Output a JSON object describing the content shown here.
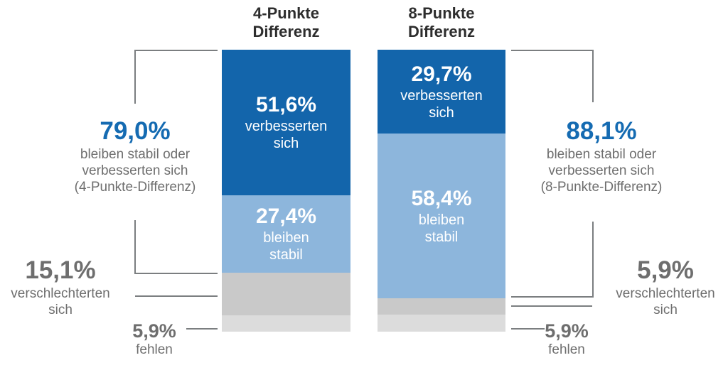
{
  "colors": {
    "improved": "#1365ab",
    "stable": "#8db6dc",
    "worsened": "#c9c9c9",
    "missing": "#dcdcdc",
    "accent_blue": "#156bb2",
    "text_dark": "#2d2d2d",
    "text_gray": "#6e6e6e",
    "line_gray": "#7b7e80",
    "bar_label": "#ffffff"
  },
  "chart_data": {
    "type": "bar",
    "subtype": "100%-stacked-vertical-columns",
    "unit": "%",
    "legend": "none",
    "columns": [
      {
        "title": "4-Punkte Differenz",
        "title_lines": [
          "4-Punkte",
          "Differenz"
        ],
        "segments": [
          {
            "category": "verbesserten sich",
            "value": 51.6,
            "value_label": "51,6%",
            "label_lines": [
              "verbesserten",
              "sich"
            ],
            "color_key": "improved"
          },
          {
            "category": "bleiben stabil",
            "value": 27.4,
            "value_label": "27,4%",
            "label_lines": [
              "bleiben",
              "stabil"
            ],
            "color_key": "stable"
          },
          {
            "category": "verschlechterten sich",
            "value": 15.1,
            "value_label": "15,1%",
            "label_lines": [],
            "color_key": "worsened"
          },
          {
            "category": "fehlen",
            "value": 5.9,
            "value_label": "5,9%",
            "label_lines": [],
            "color_key": "missing"
          }
        ]
      },
      {
        "title": "8-Punkte Differenz",
        "title_lines": [
          "8-Punkte",
          "Differenz"
        ],
        "segments": [
          {
            "category": "verbesserten sich",
            "value": 29.7,
            "value_label": "29,7%",
            "label_lines": [
              "verbesserten",
              "sich"
            ],
            "color_key": "improved"
          },
          {
            "category": "bleiben stabil",
            "value": 58.4,
            "value_label": "58,4%",
            "label_lines": [
              "bleiben",
              "stabil"
            ],
            "color_key": "stable"
          },
          {
            "category": "verschlechterten sich",
            "value": 5.9,
            "value_label": "5,9%",
            "label_lines": [],
            "color_key": "worsened"
          },
          {
            "category": "fehlen",
            "value": 5.9,
            "value_label": "5,9%",
            "label_lines": [],
            "color_key": "missing"
          }
        ]
      }
    ],
    "annotations": {
      "left_total": {
        "value": 79.0,
        "value_label": "79,0%",
        "lines": [
          "bleiben stabil oder",
          "verbesserten sich",
          "(4-Punkte-Differenz)"
        ]
      },
      "left_worsened": {
        "value": 15.1,
        "value_label": "15,1%",
        "lines": [
          "verschlechterten",
          "sich"
        ]
      },
      "left_missing": {
        "value": 5.9,
        "value_label": "5,9%",
        "lines": [
          "fehlen"
        ]
      },
      "right_total": {
        "value": 88.1,
        "value_label": "88,1%",
        "lines": [
          "bleiben stabil oder",
          "verbesserten sich",
          "(8-Punkte-Differenz)"
        ]
      },
      "right_worsened": {
        "value": 5.9,
        "value_label": "5,9%",
        "lines": [
          "verschlechterten",
          "sich"
        ]
      },
      "right_missing": {
        "value": 5.9,
        "value_label": "5,9%",
        "lines": [
          "fehlen"
        ]
      }
    }
  }
}
